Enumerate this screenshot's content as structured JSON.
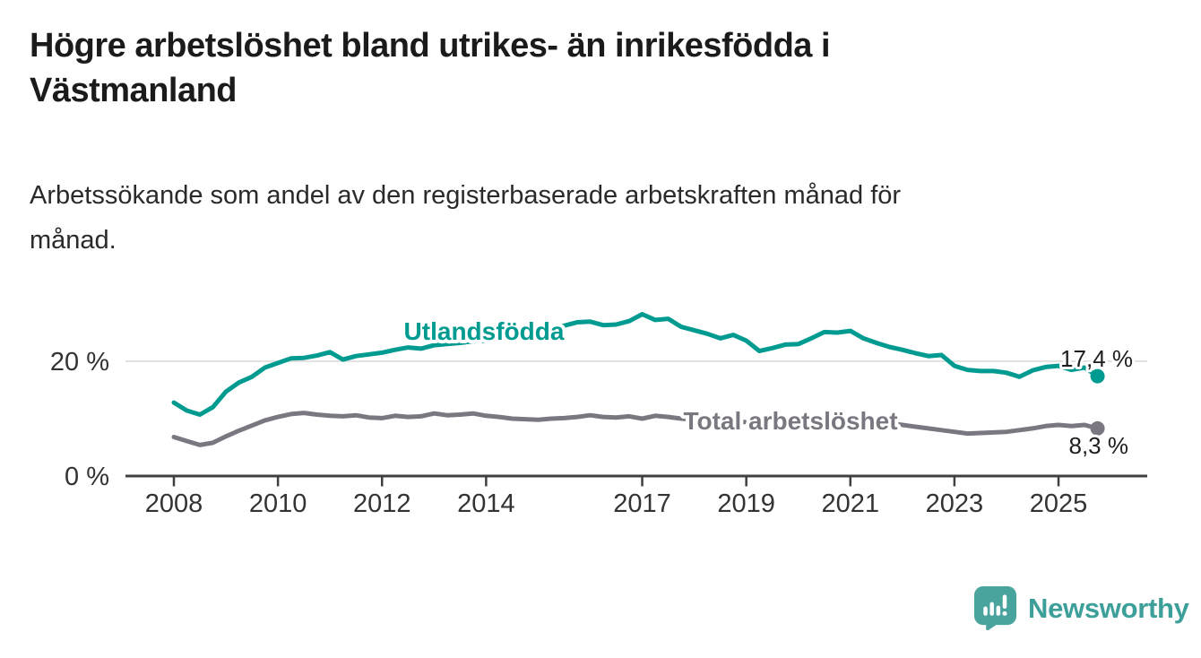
{
  "header": {
    "title": "Högre arbetslöshet bland utrikes- än inrikesfödda i\nVästmanland",
    "subtitle": "Arbetssökande som andel av den registerbaserade arbetskraften månad för\nmånad."
  },
  "footer": {
    "brand": "Newsworthy",
    "logo_icon": "bar-chart-speech-bubble-icon"
  },
  "colors": {
    "series_utlandsfodda": "#009b90",
    "series_total": "#7b7780",
    "gridline": "#d9d9d9",
    "axis": "#404040",
    "tick_label": "#333333",
    "value_label": "#1d1d1d",
    "brand_teal": "#4aa49e"
  },
  "chart_data": {
    "type": "line",
    "unit": "%",
    "title": "Högre arbetslöshet bland utrikes- än inrikesfödda i Västmanland",
    "subtitle": "Arbetssökande som andel av den registerbaserade arbetskraften månad för månad.",
    "xlabel": "",
    "ylabel": "",
    "grid": "single-horizontal-gridline-at-20",
    "legend_position": "inline-labels-on-lines",
    "xlim": [
      2007.1,
      2026.7
    ],
    "ylim": [
      0,
      29
    ],
    "x_ticks": [
      2008,
      2010,
      2012,
      2014,
      2017,
      2019,
      2021,
      2023,
      2025
    ],
    "y_ticks": [
      {
        "value": 20,
        "label": "20 %"
      },
      {
        "value": 0,
        "label": "0 %"
      }
    ],
    "x": [
      2008,
      2008.25,
      2008.5,
      2008.75,
      2009,
      2009.25,
      2009.5,
      2009.75,
      2010,
      2010.25,
      2010.5,
      2010.75,
      2011,
      2011.25,
      2011.5,
      2011.75,
      2012,
      2012.25,
      2012.5,
      2012.75,
      2013,
      2013.25,
      2013.5,
      2013.75,
      2014,
      2014.25,
      2014.5,
      2014.75,
      2015,
      2015.25,
      2015.5,
      2015.75,
      2016,
      2016.25,
      2016.5,
      2016.75,
      2017,
      2017.25,
      2017.5,
      2017.75,
      2018,
      2018.25,
      2018.5,
      2018.75,
      2019,
      2019.25,
      2019.5,
      2019.75,
      2020,
      2020.25,
      2020.5,
      2020.75,
      2021,
      2021.25,
      2021.5,
      2021.75,
      2022,
      2022.25,
      2022.5,
      2022.75,
      2023,
      2023.25,
      2023.5,
      2023.75,
      2024,
      2024.25,
      2024.5,
      2024.75,
      2025,
      2025.25,
      2025.5,
      2025.75
    ],
    "series": [
      {
        "name": "Utlandsfödda",
        "color": "#009b90",
        "end_value": 17.4,
        "end_label": "17,4 %",
        "values": [
          12.8,
          11.4,
          10.7,
          12.0,
          14.7,
          16.3,
          17.3,
          18.9,
          19.7,
          20.5,
          20.6,
          21.0,
          21.6,
          20.3,
          20.9,
          21.2,
          21.5,
          22.0,
          22.4,
          22.2,
          22.8,
          23.0,
          23.2,
          23.5,
          23.6,
          24.0,
          24.5,
          25.0,
          25.4,
          25.8,
          26.2,
          26.8,
          26.9,
          26.3,
          26.4,
          27.0,
          28.2,
          27.2,
          27.4,
          26.0,
          25.4,
          24.8,
          24.0,
          24.6,
          23.6,
          21.8,
          22.3,
          22.9,
          23.0,
          24.0,
          25.1,
          25.0,
          25.3,
          24.0,
          23.2,
          22.5,
          22.0,
          21.4,
          20.9,
          21.1,
          19.2,
          18.5,
          18.3,
          18.3,
          18.0,
          17.3,
          18.4,
          19.0,
          19.2,
          18.5,
          18.9,
          17.4
        ]
      },
      {
        "name": "Total arbetslöshet",
        "color": "#7b7780",
        "end_value": 8.3,
        "end_label": "8,3 %",
        "values": [
          6.8,
          6.1,
          5.4,
          5.8,
          6.9,
          7.9,
          8.8,
          9.7,
          10.3,
          10.8,
          11.0,
          10.7,
          10.5,
          10.4,
          10.6,
          10.2,
          10.1,
          10.5,
          10.3,
          10.4,
          10.9,
          10.6,
          10.7,
          10.9,
          10.5,
          10.3,
          10.0,
          9.9,
          9.8,
          10.0,
          10.1,
          10.3,
          10.6,
          10.3,
          10.2,
          10.4,
          10.0,
          10.5,
          10.3,
          10.0,
          9.8,
          9.6,
          9.5,
          9.4,
          9.4,
          9.3,
          9.2,
          9.3,
          9.5,
          10.2,
          10.6,
          10.4,
          10.2,
          9.8,
          9.5,
          9.2,
          8.9,
          8.6,
          8.3,
          8.0,
          7.7,
          7.4,
          7.5,
          7.6,
          7.7,
          8.0,
          8.3,
          8.7,
          8.9,
          8.7,
          8.9,
          8.3
        ]
      }
    ]
  }
}
